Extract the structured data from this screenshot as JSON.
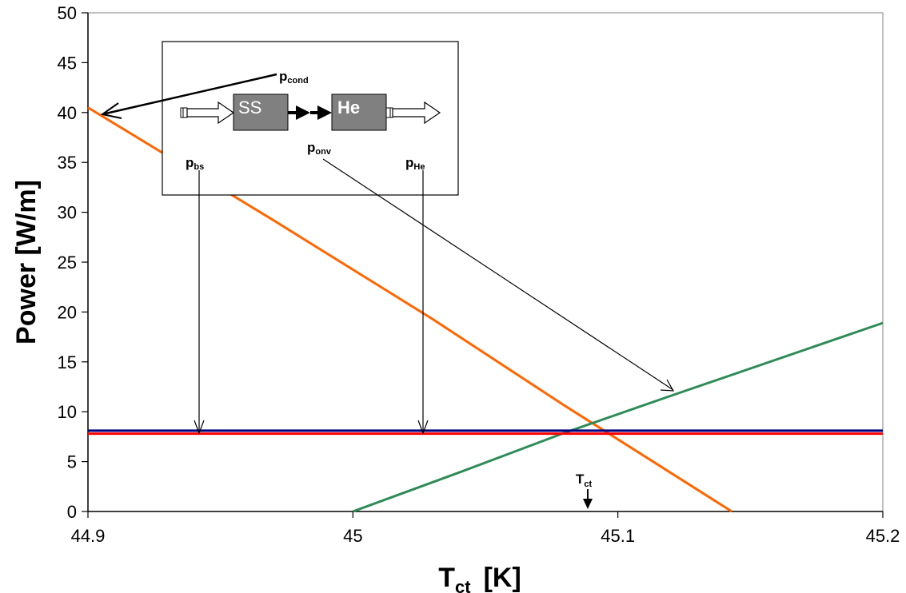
{
  "chart_data": {
    "type": "line",
    "xlabel": {
      "main": "T",
      "sub": "ct",
      "unit": "[K]"
    },
    "ylabel": "Power  [W/m]",
    "xlim": [
      44.9,
      45.2
    ],
    "ylim": [
      0,
      50
    ],
    "x_ticks": [
      "44.9",
      "45",
      "45.1",
      "45.2"
    ],
    "y_ticks": [
      "0",
      "5",
      "10",
      "15",
      "20",
      "25",
      "30",
      "35",
      "40",
      "45",
      "50"
    ],
    "grid": false,
    "legend": "none",
    "series": [
      {
        "color": "#ff6600",
        "points": [
          [
            44.9,
            40.5
          ],
          [
            44.97,
            29.2
          ],
          [
            45.03,
            19.3
          ],
          [
            45.08,
            10.6
          ],
          [
            45.143,
            0
          ]
        ]
      },
      {
        "color": "#2e8b57",
        "points": [
          [
            45.0,
            0
          ],
          [
            45.04,
            3.9
          ],
          [
            45.08,
            7.9
          ],
          [
            45.12,
            11.6
          ],
          [
            45.2,
            18.9
          ]
        ]
      },
      {
        "color": "#000080",
        "points": [
          [
            44.9,
            8.1
          ],
          [
            45.2,
            8.1
          ]
        ]
      },
      {
        "color": "#ff0000",
        "points": [
          [
            44.9,
            7.8
          ],
          [
            45.2,
            7.8
          ]
        ]
      }
    ],
    "annotations": {
      "p_cond": {
        "main": "p",
        "sub": "cond"
      },
      "p_bs": {
        "main": "p",
        "sub": "bs"
      },
      "p_onv": {
        "main": "p",
        "sub": "onv"
      },
      "p_He": {
        "main": "p",
        "sub": "He"
      },
      "t_ct": {
        "main": "T",
        "sub": "ct"
      },
      "box_ss": "SS",
      "box_he": "He"
    },
    "colors": {
      "box_fill": "#808080",
      "frame": "#000000"
    }
  }
}
